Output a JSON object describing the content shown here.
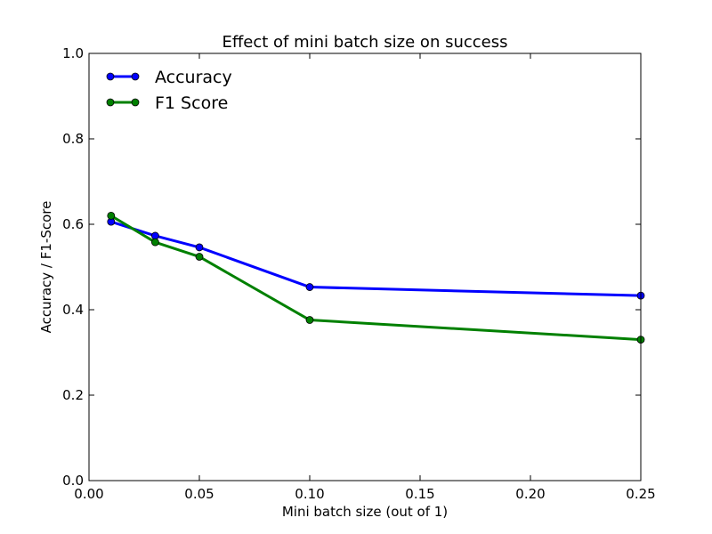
{
  "chart_data": {
    "type": "line",
    "title": "Effect of mini batch size on success",
    "xlabel": "Mini batch size (out of 1)",
    "ylabel": "Accuracy / F1-Score",
    "xlim": [
      0.0,
      0.25
    ],
    "ylim": [
      0.0,
      1.0
    ],
    "x_ticks": [
      0.0,
      0.05,
      0.1,
      0.15,
      0.2,
      0.25
    ],
    "x_tick_labels": [
      "0.00",
      "0.05",
      "0.10",
      "0.15",
      "0.20",
      "0.25"
    ],
    "y_ticks": [
      0.0,
      0.2,
      0.4,
      0.6,
      0.8,
      1.0
    ],
    "y_tick_labels": [
      "0.0",
      "0.2",
      "0.4",
      "0.6",
      "0.8",
      "1.0"
    ],
    "grid": false,
    "legend_position": "top-left",
    "x": [
      0.01,
      0.03,
      0.05,
      0.1,
      0.25
    ],
    "series": [
      {
        "name": "Accuracy",
        "color": "#0000ff",
        "values": [
          0.606,
          0.573,
          0.546,
          0.453,
          0.433
        ]
      },
      {
        "name": "F1 Score",
        "color": "#008000",
        "values": [
          0.62,
          0.558,
          0.524,
          0.376,
          0.33
        ]
      }
    ]
  }
}
